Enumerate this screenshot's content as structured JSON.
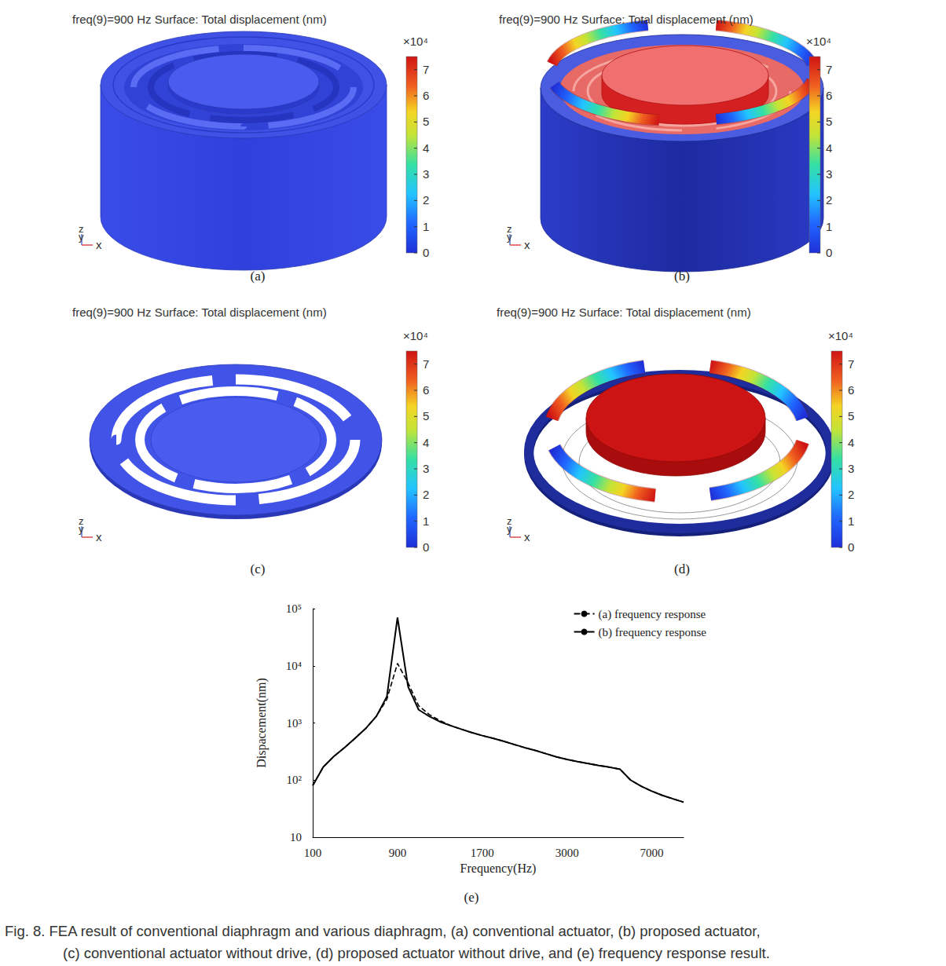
{
  "panels": [
    {
      "label": "(a)",
      "title": "freq(9)=900 Hz Surface: Total displacement (nm)",
      "colorbar": {
        "scale_label": "×10⁴",
        "range": [
          0,
          7.5
        ],
        "ticks": [
          0,
          1,
          2,
          3,
          4,
          5,
          6,
          7
        ]
      },
      "triad": [
        "z",
        "y",
        "x"
      ]
    },
    {
      "label": "(b)",
      "title": "freq(9)=900 Hz   Surface: Total displacement (nm)",
      "colorbar": {
        "scale_label": "×10⁴",
        "range": [
          0,
          7.5
        ],
        "ticks": [
          0,
          1,
          2,
          3,
          4,
          5,
          6,
          7
        ]
      },
      "triad": [
        "z",
        "y",
        "x"
      ]
    },
    {
      "label": "(c)",
      "title": "freq(9)=900 Hz Surface: Total displacement (nm)",
      "colorbar": {
        "scale_label": "×10⁴",
        "range": [
          0,
          7.5
        ],
        "ticks": [
          0,
          1,
          2,
          3,
          4,
          5,
          6,
          7
        ]
      },
      "triad": [
        "z",
        "y",
        "x"
      ]
    },
    {
      "label": "(d)",
      "title": "freq(9)=900 Hz   Surface: Total displacement (nm)",
      "colorbar": {
        "scale_label": "×10⁴",
        "range": [
          0,
          7.5
        ],
        "ticks": [
          0,
          1,
          2,
          3,
          4,
          5,
          6,
          7
        ]
      },
      "triad": [
        "z",
        "y",
        "x"
      ]
    }
  ],
  "chart_label": "(e)",
  "chart_data": {
    "type": "line",
    "xlabel": "Frequency(Hz)",
    "ylabel": "Dispacement(nm)",
    "categories": [
      "100",
      null,
      null,
      null,
      null,
      null,
      null,
      null,
      "900",
      null,
      null,
      null,
      null,
      null,
      null,
      null,
      "1700",
      null,
      null,
      null,
      null,
      null,
      null,
      null,
      "3000",
      null,
      null,
      null,
      null,
      null,
      null,
      null,
      "7000",
      null,
      null,
      null
    ],
    "series": [
      {
        "name": "(a) frequency response",
        "color": "#000000",
        "line_style": "dashed",
        "values": [
          80,
          170,
          260,
          370,
          540,
          800,
          1300,
          2600,
          11000,
          5000,
          2000,
          1400,
          1100,
          900,
          780,
          680,
          600,
          540,
          480,
          420,
          370,
          330,
          290,
          255,
          230,
          210,
          195,
          180,
          168,
          155,
          100,
          78,
          64,
          54,
          47,
          41
        ]
      },
      {
        "name": "(b) frequency response",
        "color": "#000000",
        "line_style": "solid",
        "values": [
          80,
          170,
          260,
          370,
          540,
          800,
          1300,
          2900,
          70000,
          4300,
          1700,
          1300,
          1050,
          900,
          780,
          680,
          600,
          540,
          480,
          420,
          370,
          330,
          290,
          255,
          230,
          210,
          195,
          180,
          168,
          155,
          100,
          78,
          64,
          54,
          47,
          41
        ]
      }
    ],
    "log": "y",
    "ylim": [
      10,
      100000
    ],
    "yticks": [
      10,
      {
        "value": 100,
        "label": "10²"
      },
      {
        "value": 1000,
        "label": "10³"
      },
      {
        "value": 10000,
        "label": "10⁴"
      },
      {
        "value": 100000,
        "label": "10⁵"
      }
    ],
    "grid": false,
    "legend": "upper right"
  },
  "caption": [
    "Fig. 8. FEA result of conventional diaphragm and various diaphragm, (a) conventional actuator, (b) proposed actuator,",
    "(c) conventional actuator without drive, (d) proposed actuator without drive, and (e) frequency response result."
  ]
}
